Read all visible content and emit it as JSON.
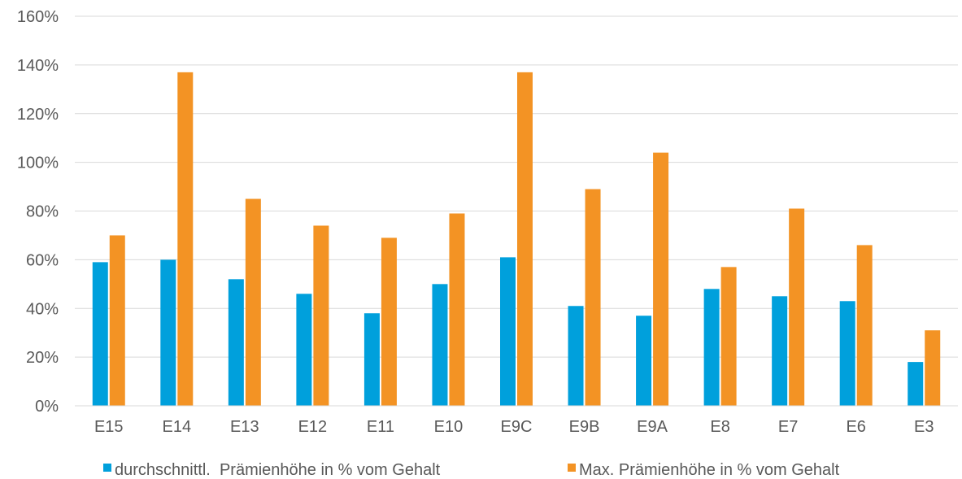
{
  "chart_data": {
    "type": "bar",
    "categories": [
      "E15",
      "E14",
      "E13",
      "E12",
      "E11",
      "E10",
      "E9C",
      "E9B",
      "E9A",
      "E8",
      "E7",
      "E6",
      "E3"
    ],
    "series": [
      {
        "name": "durchschnittl.  Prämienhöhe in % vom Gehalt",
        "color": "#00a0dc",
        "values": [
          59,
          60,
          52,
          46,
          38,
          50,
          61,
          41,
          37,
          48,
          45,
          43,
          18
        ]
      },
      {
        "name": "Max. Prämienhöhe in % vom Gehalt",
        "color": "#f39324",
        "values": [
          70,
          137,
          85,
          74,
          69,
          79,
          137,
          89,
          104,
          57,
          81,
          66,
          31
        ]
      }
    ],
    "ylim": [
      0,
      160
    ],
    "yticks": [
      0,
      20,
      40,
      60,
      80,
      100,
      120,
      140,
      160
    ],
    "ytick_format": "percent",
    "grid": true,
    "legend_position": "bottom",
    "xlabel": "",
    "ylabel": "",
    "title": ""
  }
}
